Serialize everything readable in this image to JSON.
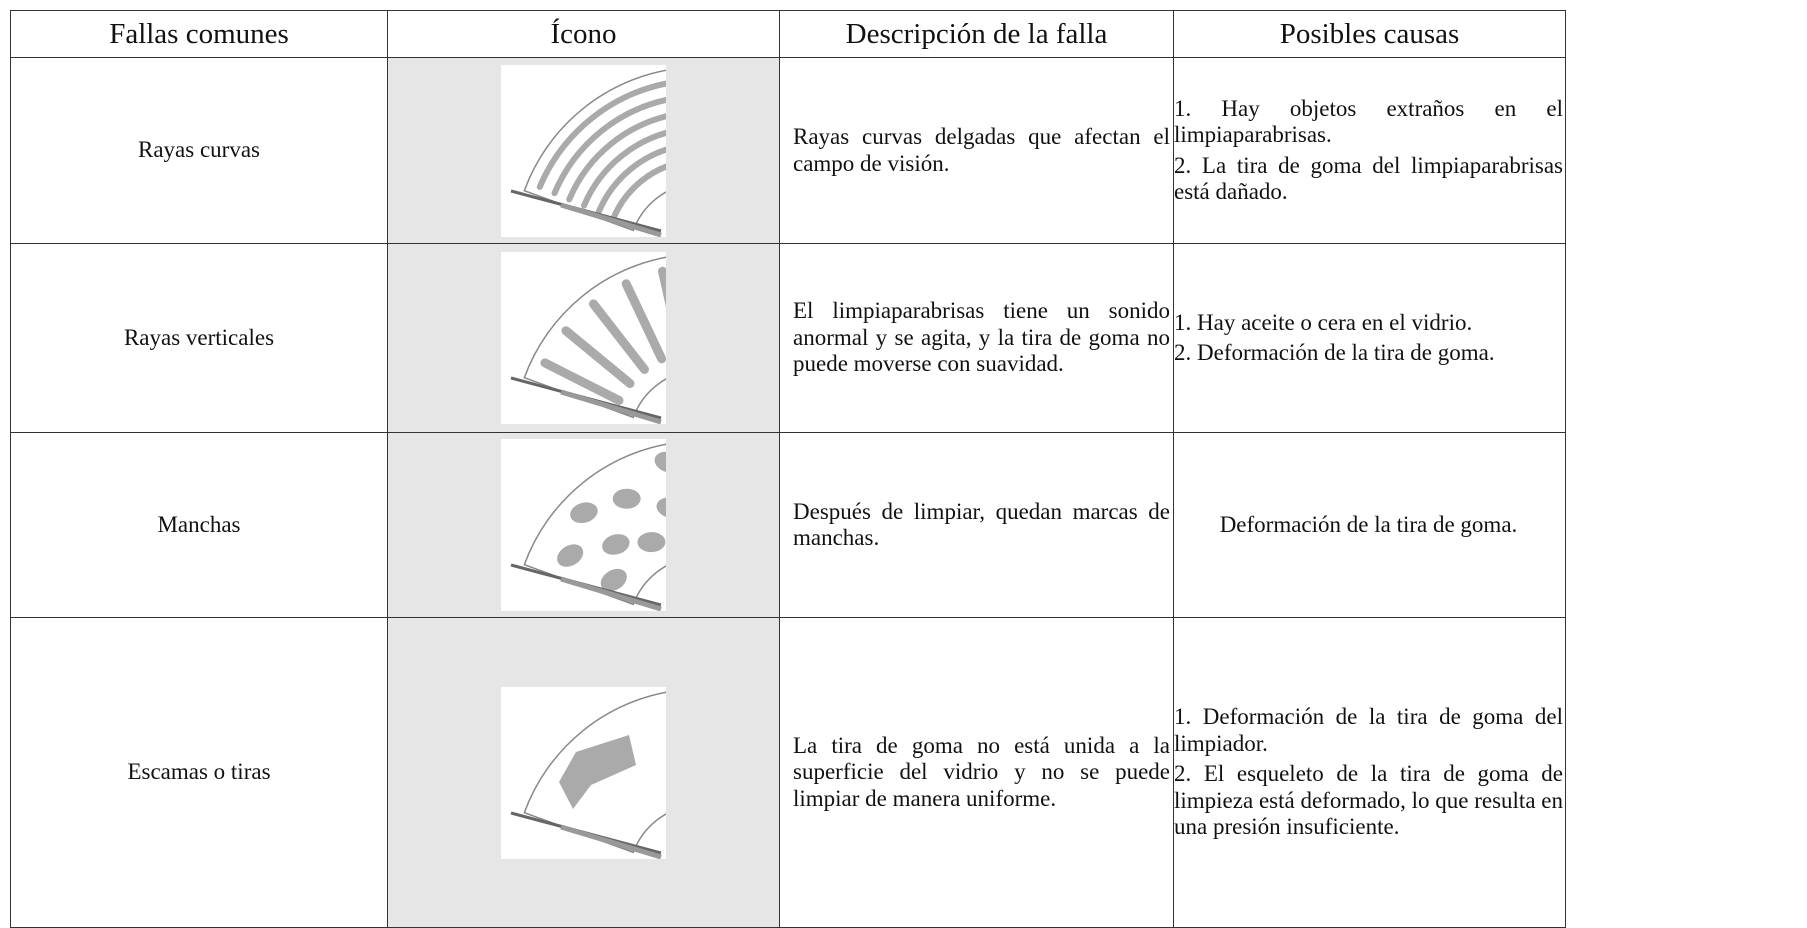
{
  "table": {
    "header": [
      "Fallas comunes",
      "Ícono",
      "Descripción de la falla",
      "Posibles causas"
    ],
    "rows": [
      {
        "name": "Rayas curvas",
        "description": "Rayas curvas delgadas que afectan el campo de visión.",
        "causes": [
          "1. Hay objetos extraños en el limpiaparabrisas.",
          "2. La tira de goma del limpiaparabrisas está dañado."
        ]
      },
      {
        "name": "Rayas verticales",
        "description": "El limpiaparabrisas tiene un sonido anormal y se agita, y la tira de goma no puede moverse con suavidad.",
        "causes": [
          "1. Hay aceite o cera en el vidrio.",
          "2. Deformación de la tira de goma."
        ]
      },
      {
        "name": "Manchas",
        "description": "Después de limpiar, quedan marcas de manchas.",
        "causes": [
          "Deformación de la tira de goma."
        ]
      },
      {
        "name": "Escamas o tiras",
        "description": "La tira de goma no está unida a la superficie del vidrio y no se puede limpiar de manera uniforme.",
        "causes": [
          "1. Deformación de la tira de goma del limpiador.",
          "2. El esqueleto de la tira de goma de limpieza está deformado, lo que resulta en una presión insuficiente."
        ]
      }
    ]
  }
}
